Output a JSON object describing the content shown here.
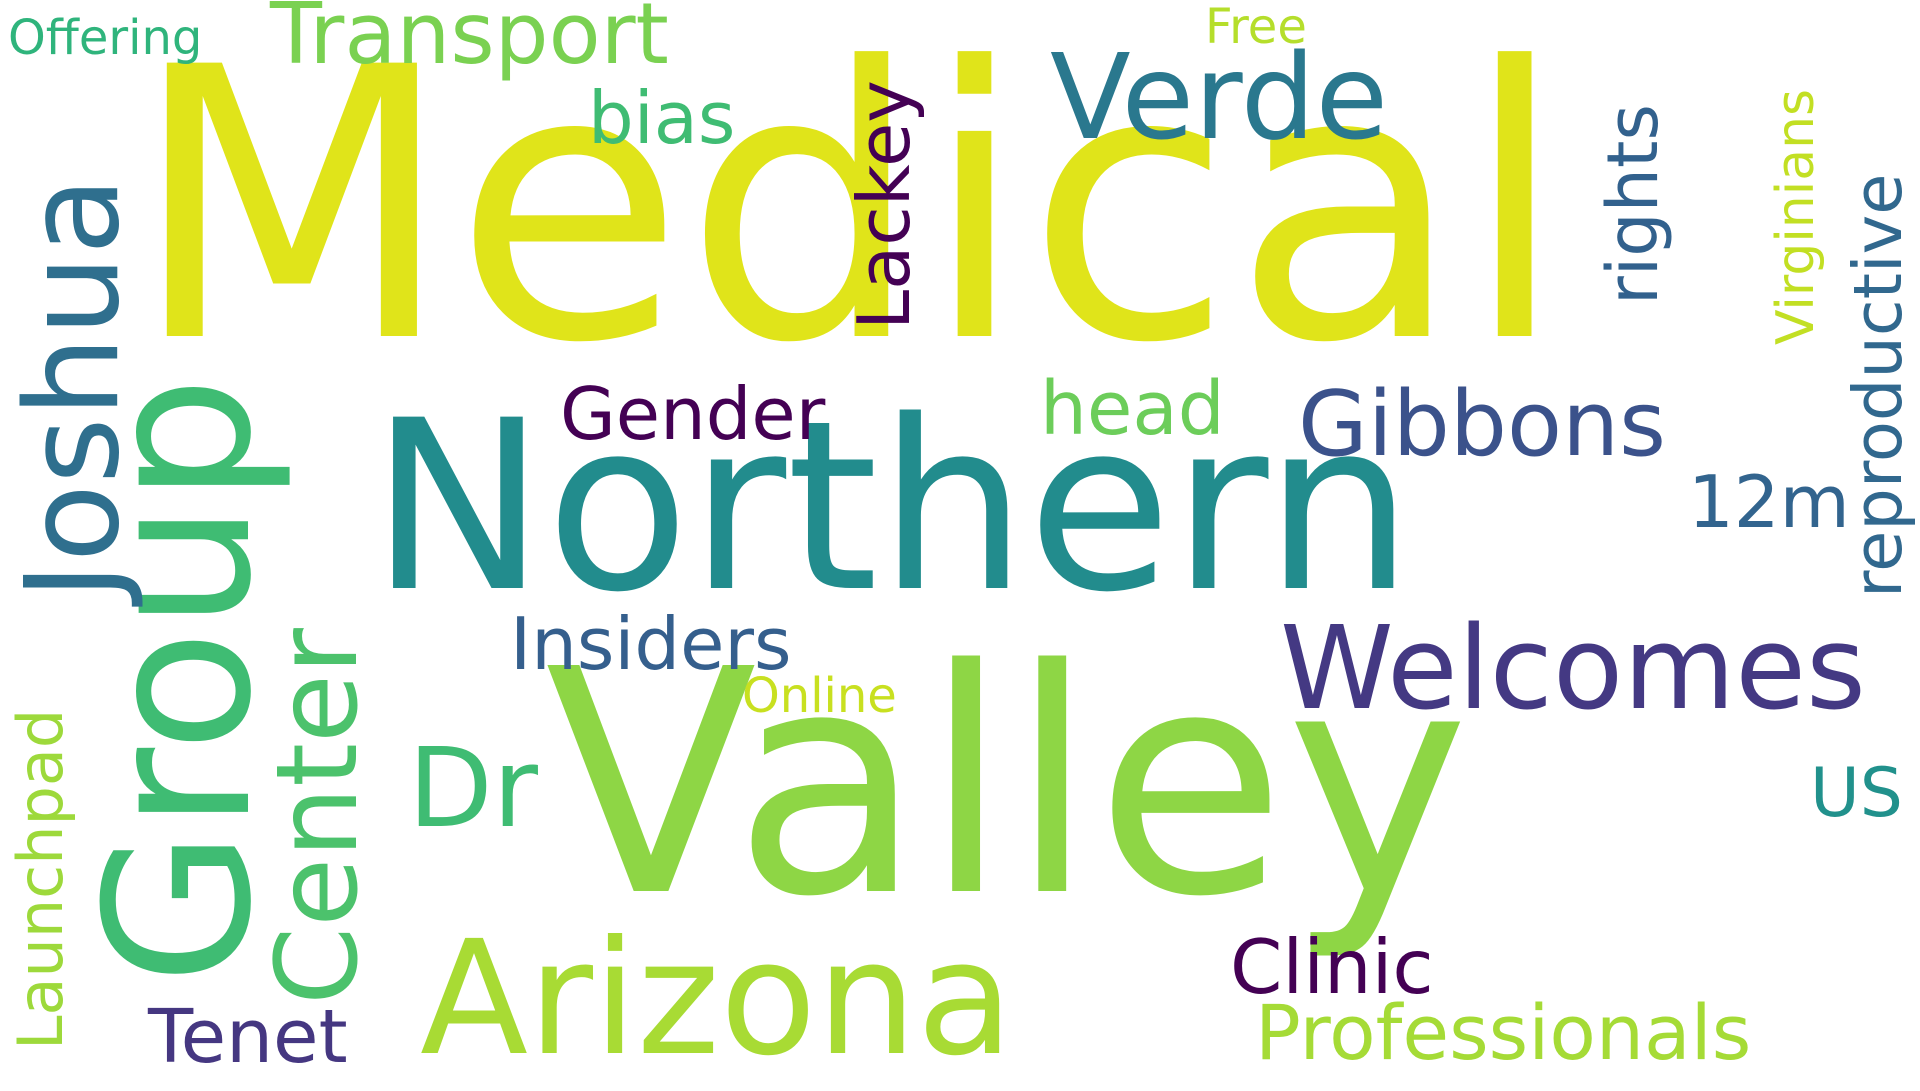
{
  "colors": {
    "background": "#ffffff",
    "yellow": "#e0e41a",
    "lime": "#8ed645",
    "light_lime": "#b5de2b",
    "green": "#3fbc73",
    "teal": "#228c8d",
    "slate_blue": "#32618d",
    "indigo": "#443983",
    "dark_purple": "#440154"
  },
  "words": {
    "medical": "Medical",
    "valley": "Valley",
    "northern": "Northern",
    "arizona": "Arizona",
    "group": "Group",
    "joshua": "Joshua",
    "welcomes": "Welcomes",
    "verde": "Verde",
    "center": "Center",
    "gibbons": "Gibbons",
    "dr": "Dr",
    "transport": "Transport",
    "lackey": "Lackey",
    "rights": "rights",
    "reproductive": "reproductive",
    "professionals": "Professionals",
    "clinic": "Clinic",
    "launchpad": "Launchpad",
    "tenet": "Tenet",
    "insiders": "Insiders",
    "gender": "Gender",
    "head": "head",
    "bias": "bias",
    "12m": "12m",
    "us": "US",
    "offering": "Offering",
    "free": "Free",
    "virginians": "Virginians",
    "online": "Online"
  }
}
